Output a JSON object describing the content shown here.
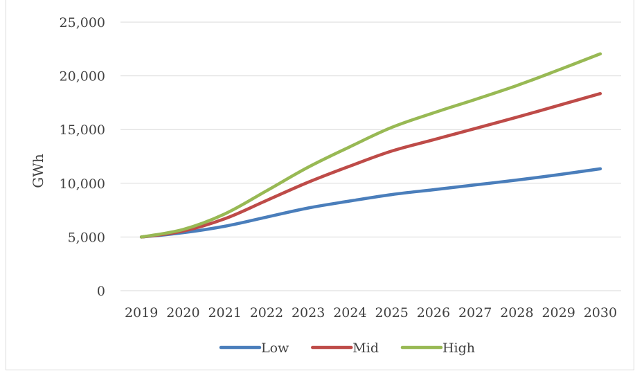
{
  "chart_data": {
    "type": "line",
    "title": "",
    "xlabel": "",
    "ylabel": "GWh",
    "ylim": [
      0,
      25000
    ],
    "y_ticks": [
      0,
      5000,
      10000,
      15000,
      20000,
      25000
    ],
    "y_tick_labels": [
      "0",
      "5,000",
      "10,000",
      "15,000",
      "20,000",
      "25,000"
    ],
    "categories": [
      "2019",
      "2020",
      "2021",
      "2022",
      "2023",
      "2024",
      "2025",
      "2026",
      "2027",
      "2028",
      "2029",
      "2030"
    ],
    "grid": true,
    "legend_position": "bottom",
    "series": [
      {
        "name": "Low",
        "color": "#4a7ebb",
        "values": [
          5000,
          5400,
          6000,
          6850,
          7700,
          8350,
          8950,
          9400,
          9850,
          10300,
          10800,
          11350
        ]
      },
      {
        "name": "Mid",
        "color": "#be4b48",
        "values": [
          5000,
          5550,
          6700,
          8400,
          10100,
          11600,
          13000,
          14050,
          15100,
          16150,
          17250,
          18350
        ]
      },
      {
        "name": "High",
        "color": "#98b954",
        "values": [
          5000,
          5700,
          7150,
          9300,
          11500,
          13400,
          15200,
          16550,
          17800,
          19100,
          20550,
          22050
        ]
      }
    ]
  }
}
